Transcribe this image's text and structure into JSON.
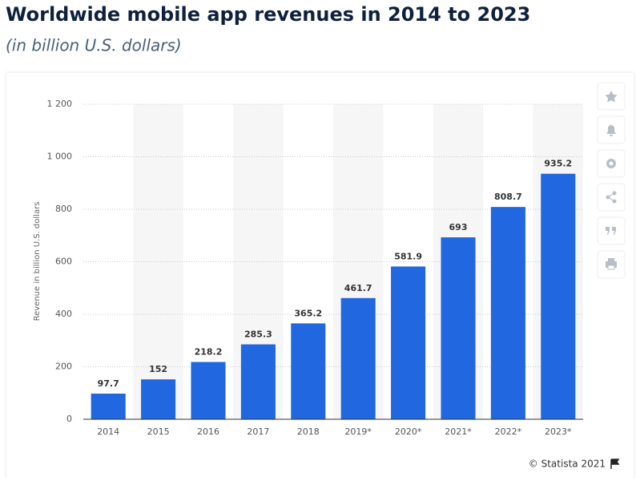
{
  "chart_data": {
    "type": "bar",
    "title": "Worldwide mobile app revenues in 2014 to 2023",
    "subtitle": "(in billion U.S. dollars)",
    "y_label": "Revenue in billion U.S. dollars",
    "categories": [
      "2014",
      "2015",
      "2016",
      "2017",
      "2018",
      "2019*",
      "2020*",
      "2021*",
      "2022*",
      "2023*"
    ],
    "values": [
      97.7,
      152,
      218.2,
      285.3,
      365.2,
      461.7,
      581.9,
      693,
      808.7,
      935.2
    ],
    "color": "#2167df",
    "ylim": [
      0,
      1200
    ],
    "yticks": [
      0,
      200,
      400,
      600,
      800,
      {
        "value": 1000,
        "label": "1 000"
      },
      {
        "value": 1200,
        "label": "1 200"
      }
    ],
    "grid": true,
    "source": "© Statista 2021"
  }
}
